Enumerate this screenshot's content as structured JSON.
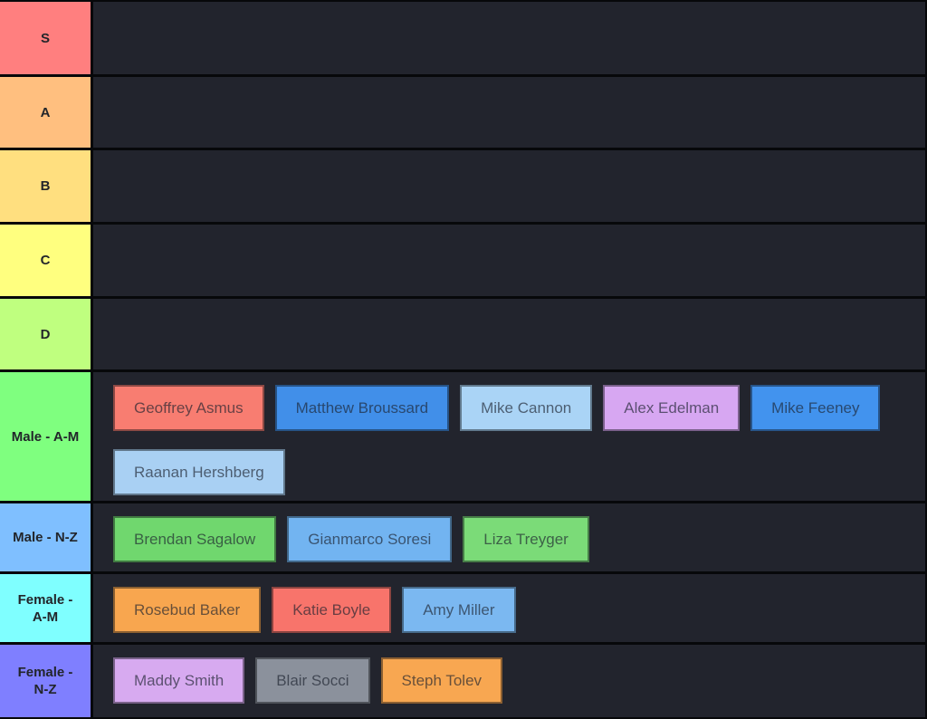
{
  "tierlist": {
    "background_color": "#22242d",
    "border_color": "#07080a",
    "rows": [
      {
        "label": "S",
        "label_color": "#ff7f7f",
        "items": []
      },
      {
        "label": "A",
        "label_color": "#ffbf7f",
        "items": []
      },
      {
        "label": "B",
        "label_color": "#ffdf7f",
        "items": []
      },
      {
        "label": "C",
        "label_color": "#ffff7f",
        "items": []
      },
      {
        "label": "D",
        "label_color": "#bfff7f",
        "items": []
      },
      {
        "label": "Male - A-M",
        "label_color": "#7fff7f",
        "items": [
          {
            "name": "Geoffrey Asmus",
            "color": "#f87d71"
          },
          {
            "name": "Matthew Broussard",
            "color": "#418fe9"
          },
          {
            "name": "Mike Cannon",
            "color": "#aad4f6"
          },
          {
            "name": "Alex Edelman",
            "color": "#d7a7f2"
          },
          {
            "name": "Mike Feeney",
            "color": "#4293ee"
          },
          {
            "name": "Raanan Hershberg",
            "color": "#a9d0f3"
          }
        ]
      },
      {
        "label": "Male - N-Z",
        "label_color": "#7fbfff",
        "items": [
          {
            "name": "Brendan Sagalow",
            "color": "#70d76e"
          },
          {
            "name": "Gianmarco Soresi",
            "color": "#72b4f1"
          },
          {
            "name": "Liza Treyger",
            "color": "#7bdb78"
          }
        ]
      },
      {
        "label": "Female - A-M",
        "label_color": "#7fffff",
        "items": [
          {
            "name": "Rosebud Baker",
            "color": "#f8a64f"
          },
          {
            "name": "Katie Boyle",
            "color": "#f8746b"
          },
          {
            "name": "Amy Miller",
            "color": "#7bb8f1"
          }
        ]
      },
      {
        "label": "Female - N-Z",
        "label_color": "#7f7fff",
        "items": [
          {
            "name": "Maddy Smith",
            "color": "#d7aaf0"
          },
          {
            "name": "Blair Socci",
            "color": "#8b919c"
          },
          {
            "name": "Steph Tolev",
            "color": "#f8a751"
          }
        ]
      }
    ]
  }
}
